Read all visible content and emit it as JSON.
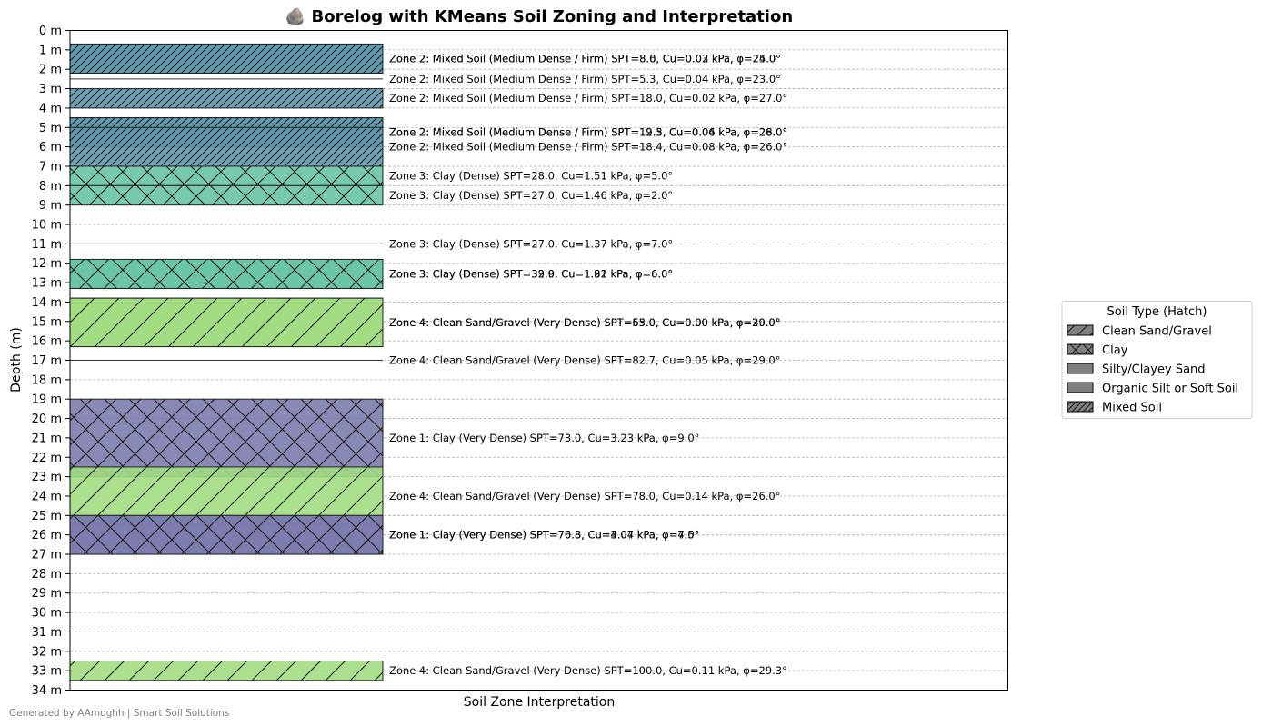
{
  "chart_data": {
    "type": "bar",
    "title": "🪨 Borelog with KMeans Soil Zoning and Interpretation",
    "xlabel": "Soil Zone Interpretation",
    "ylabel": "Depth (m)",
    "ylim": [
      0,
      34
    ],
    "y_inverted": true,
    "grid": "horizontal dashed",
    "y_ticks": [
      "0 m",
      "1 m",
      "2 m",
      "3 m",
      "4 m",
      "5 m",
      "6 m",
      "7 m",
      "8 m",
      "9 m",
      "10 m",
      "11 m",
      "12 m",
      "13 m",
      "14 m",
      "15 m",
      "16 m",
      "17 m",
      "18 m",
      "19 m",
      "20 m",
      "21 m",
      "22 m",
      "23 m",
      "24 m",
      "25 m",
      "26 m",
      "27 m",
      "28 m",
      "29 m",
      "30 m",
      "31 m",
      "32 m",
      "33 m",
      "34 m"
    ],
    "colors": {
      "Zone 1": "#7b7cad",
      "Zone 2": "#5e99ad",
      "Zone 3": "#69c4a6",
      "Zone 4": "#a2dd82"
    },
    "hatches": {
      "Clean Sand/Gravel": "diagonal",
      "Clay": "cross",
      "Silty/Clayey Sand": "none",
      "Organic Silt or Soft Soil": "none",
      "Mixed Soil": "dense-diagonal"
    },
    "layers": [
      {
        "top": 0.7,
        "bottom": 2.2,
        "zone": "Zone 2",
        "soil": "Mixed Soil",
        "label": "Zone 2: Mixed Soil (Medium Dense / Firm) SPT=8.0, Cu=0.03 kPa, φ=24.0°"
      },
      {
        "top": 0.7,
        "bottom": 2.2,
        "zone": "Zone 2",
        "soil": "Mixed Soil",
        "label": "Zone 2: Mixed Soil (Medium Dense / Firm) SPT=8.6, Cu=0.02 kPa, φ=25.0°"
      },
      {
        "top": 2.5,
        "bottom": 2.5,
        "zone": "Zone 2",
        "soil": "Mixed Soil",
        "label": "Zone 2: Mixed Soil (Medium Dense / Firm) SPT=5.3, Cu=0.04 kPa, φ=23.0°"
      },
      {
        "top": 3.0,
        "bottom": 4.0,
        "zone": "Zone 2",
        "soil": "Mixed Soil",
        "label": "Zone 2: Mixed Soil (Medium Dense / Firm) SPT=18.0, Cu=0.02 kPa, φ=27.0°"
      },
      {
        "top": 4.5,
        "bottom": 6.0,
        "zone": "Zone 2",
        "soil": "Mixed Soil",
        "label": "Zone 2: Mixed Soil (Medium Dense / Firm) SPT=12.5, Cu=0.04 kPa, φ=26.0°"
      },
      {
        "top": 4.5,
        "bottom": 6.0,
        "zone": "Zone 2",
        "soil": "Mixed Soil",
        "label": "Zone 2: Mixed Soil (Medium Dense / Firm) SPT=19.3, Cu=0.06 kPa, φ=28.0°"
      },
      {
        "top": 5.0,
        "bottom": 7.0,
        "zone": "Zone 2",
        "soil": "Mixed Soil",
        "label": "Zone 2: Mixed Soil (Medium Dense / Firm) SPT=18.4, Cu=0.08 kPa, φ=26.0°"
      },
      {
        "top": 7.0,
        "bottom": 8.0,
        "zone": "Zone 3",
        "soil": "Clay",
        "label": "Zone 3: Clay (Dense) SPT=28.0, Cu=1.51 kPa, φ=5.0°"
      },
      {
        "top": 8.0,
        "bottom": 9.0,
        "zone": "Zone 3",
        "soil": "Clay",
        "label": "Zone 3: Clay (Dense) SPT=27.0, Cu=1.46 kPa, φ=2.0°"
      },
      {
        "top": 11.0,
        "bottom": 11.0,
        "zone": "Zone 3",
        "soil": "Clay",
        "label": "Zone 3: Clay (Dense) SPT=27.0, Cu=1.37 kPa, φ=7.0°"
      },
      {
        "top": 11.8,
        "bottom": 13.3,
        "zone": "Zone 3",
        "soil": "Clay",
        "label": "Zone 3: Clay (Dense) SPT=32.0, Cu=1.81 kPa, φ=6.0°"
      },
      {
        "top": 11.8,
        "bottom": 13.3,
        "zone": "Zone 3",
        "soil": "Clay",
        "label": "Zone 3: Clay (Dense) SPT=39.9, Cu=1.92 kPa, φ=6.0°"
      },
      {
        "top": 13.8,
        "bottom": 16.3,
        "zone": "Zone 4",
        "soil": "Clean Sand/Gravel",
        "label": "Zone 4: Clean Sand/Gravel (Very Dense) SPT=65.0, Cu=0.00 kPa, φ=30.0°"
      },
      {
        "top": 13.8,
        "bottom": 16.3,
        "zone": "Zone 4",
        "soil": "Clean Sand/Gravel",
        "label": "Zone 4: Clean Sand/Gravel (Very Dense) SPT=53.0, Cu=0.00 kPa, φ=29.0°"
      },
      {
        "top": 17.0,
        "bottom": 17.0,
        "zone": "Zone 4",
        "soil": "Clean Sand/Gravel",
        "label": "Zone 4: Clean Sand/Gravel (Very Dense) SPT=82.7, Cu=0.05 kPa, φ=29.0°"
      },
      {
        "top": 19.0,
        "bottom": 23.0,
        "zone": "Zone 1",
        "soil": "Clay",
        "label": "Zone 1: Clay (Very Dense) SPT=73.0, Cu=3.23 kPa, φ=9.0°"
      },
      {
        "top": 22.5,
        "bottom": 25.5,
        "zone": "Zone 4",
        "soil": "Clean Sand/Gravel",
        "label": "Zone 4: Clean Sand/Gravel (Very Dense) SPT=78.0, Cu=0.14 kPa, φ=26.0°"
      },
      {
        "top": 25.0,
        "bottom": 27.0,
        "zone": "Zone 1",
        "soil": "Clay",
        "label": "Zone 1: Clay (Very Dense) SPT=76.8, Cu=3.07 kPa, φ=7.0°"
      },
      {
        "top": 25.0,
        "bottom": 27.0,
        "zone": "Zone 1",
        "soil": "Clay",
        "label": "Zone 1: Clay (Very Dense) SPT=70.3, Cu=4.04 kPa, φ=4.5°"
      },
      {
        "top": 32.5,
        "bottom": 33.5,
        "zone": "Zone 4",
        "soil": "Clean Sand/Gravel",
        "label": "Zone 4: Clean Sand/Gravel (Very Dense) SPT=100.0, Cu=0.11 kPa, φ=29.3°"
      }
    ],
    "legend": {
      "title": "Soil Type (Hatch)",
      "position": "right",
      "entries": [
        "Clean Sand/Gravel",
        "Clay",
        "Silty/Clayey Sand",
        "Organic Silt or Soft Soil",
        "Mixed Soil"
      ]
    }
  },
  "footer": "Generated by AAmoghh | Smart Soil Solutions"
}
